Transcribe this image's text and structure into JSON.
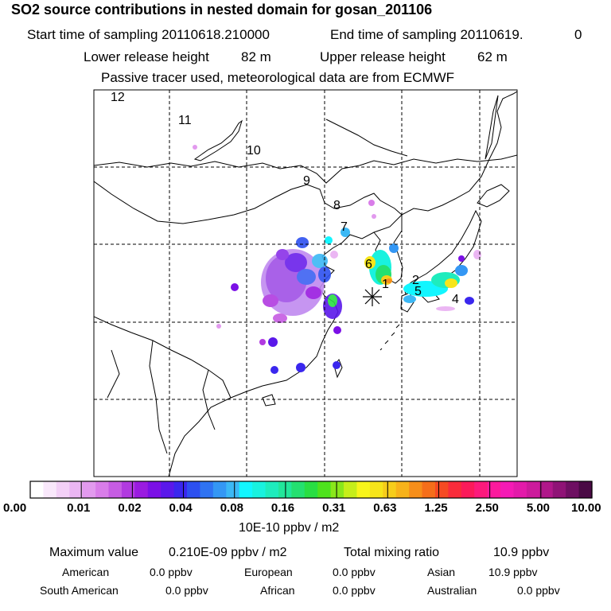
{
  "header": {
    "title": "SO2 source contributions in nested domain for gosan_201106",
    "start_label": "Start time of sampling 20110618.210000",
    "end_label": "End time of sampling 20110619.",
    "end_value": "0",
    "lower_label": "Lower release height",
    "lower_value": "82 m",
    "upper_label": "Upper release height",
    "upper_value": "62 m",
    "note": "Passive tracer used, meteorological data are from ECMWF"
  },
  "map": {
    "trajectory_labels": [
      "12",
      "11",
      "10",
      "9",
      "8",
      "7",
      "6",
      "1",
      "2",
      "5",
      "4"
    ],
    "receptor_symbol": "star-marker"
  },
  "colorbar": {
    "ticks": [
      "0.00",
      "0.01",
      "0.02",
      "0.04",
      "0.08",
      "0.16",
      "0.31",
      "0.63",
      "1.25",
      "2.50",
      "5.00",
      "10.00"
    ],
    "colors": [
      "#ffffff",
      "#f9e8fb",
      "#f3d0f7",
      "#ebb6f3",
      "#e29aee",
      "#d97de9",
      "#c65ce3",
      "#b13ae0",
      "#9a1be0",
      "#7b10e6",
      "#5a18ea",
      "#3a27ee",
      "#2d50f0",
      "#2f73f2",
      "#3497f4",
      "#3bb8f5",
      "#12f6ff",
      "#19f2df",
      "#1eecbd",
      "#22e69a",
      "#24e070",
      "#29de43",
      "#4ee21d",
      "#8ae71b",
      "#c6ee1a",
      "#f8f51a",
      "#f6e51a",
      "#f6cd1a",
      "#f7b21a",
      "#f68e1a",
      "#f56e1a",
      "#f64a23",
      "#f92c3b",
      "#fb1a5a",
      "#fc1a7c",
      "#fb1a9d",
      "#f51ab5",
      "#e31aaa",
      "#cc1a9c",
      "#b0178a",
      "#8f1376",
      "#6e0f62",
      "#4a0a45"
    ],
    "units": "10E-10 ppbv / m2"
  },
  "stats": {
    "max_label": "Maximum value",
    "max_value": "0.210E-09 ppbv / m2",
    "total_label": "Total mixing ratio",
    "total_value": "10.9 ppbv",
    "regions": [
      {
        "name": "American",
        "value": "0.0 ppbv"
      },
      {
        "name": "European",
        "value": "0.0 ppbv"
      },
      {
        "name": "Asian",
        "value": "10.9 ppbv"
      },
      {
        "name": "South American",
        "value": "0.0 ppbv"
      },
      {
        "name": "African",
        "value": "0.0 ppbv"
      },
      {
        "name": "Australian",
        "value": "0.0 ppbv"
      }
    ]
  }
}
